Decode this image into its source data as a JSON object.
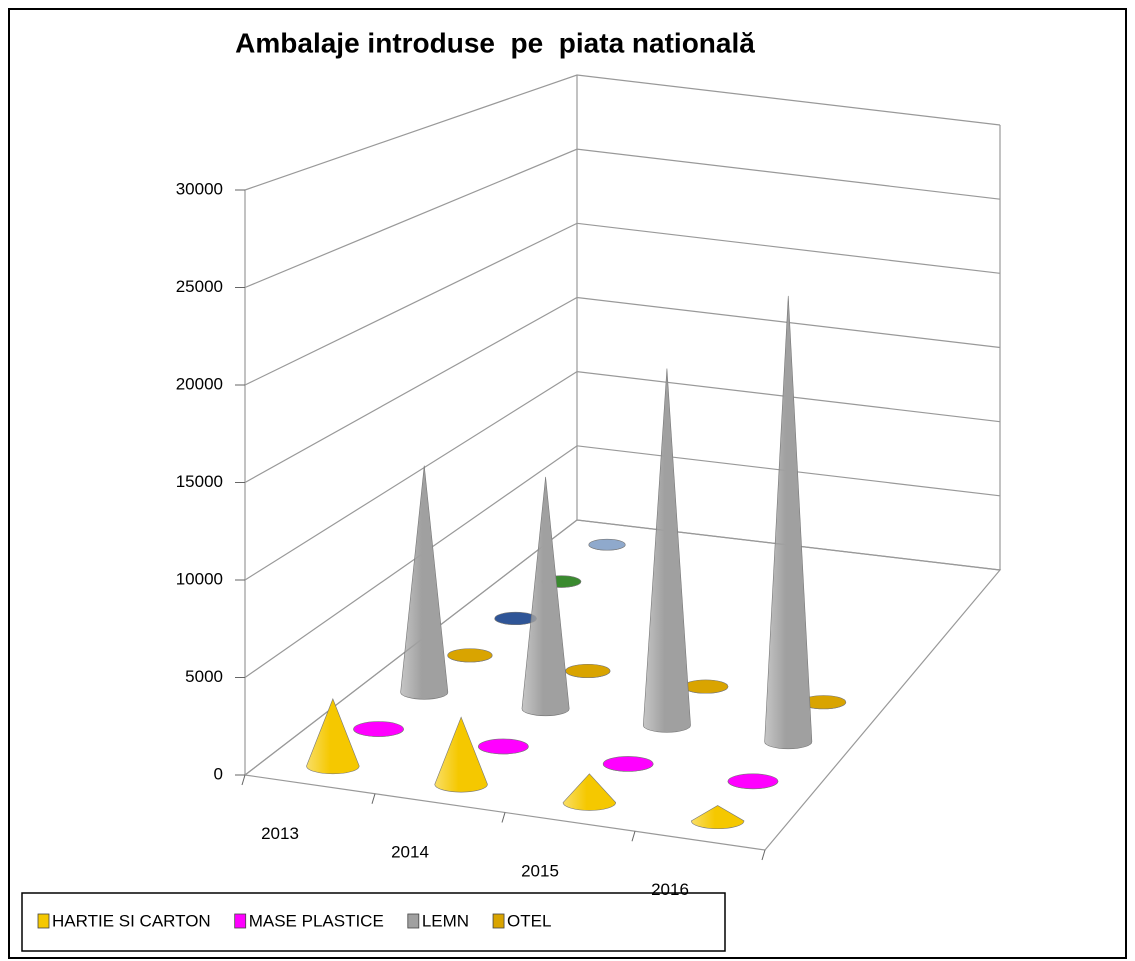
{
  "chart_data": {
    "type": "cone3d",
    "title": "Ambalaje introduse  pe  piata natională",
    "categories": [
      "2013",
      "2014",
      "2015",
      "2016"
    ],
    "series": [
      {
        "name": "HARTIE SI CARTON",
        "color": "#f5c800",
        "values": [
          3500,
          3500,
          1500,
          800
        ]
      },
      {
        "name": "MASE PLASTICE",
        "color": "#ff00ff",
        "values": [
          0,
          0,
          0,
          0
        ]
      },
      {
        "name": "LEMN",
        "color": "#a0a0a0",
        "values": [
          12700,
          13000,
          20000,
          25000
        ]
      },
      {
        "name": "OTEL",
        "color": "#d9a400",
        "values": [
          0,
          0,
          0,
          0
        ]
      },
      {
        "color": "#2f5597",
        "values": [
          0,
          null,
          null,
          null
        ]
      },
      {
        "color": "#3a8a2f",
        "values": [
          0,
          null,
          null,
          null
        ]
      },
      {
        "color": "#8fa9cc",
        "values": [
          0,
          null,
          null,
          null
        ]
      }
    ],
    "ylim": [
      0,
      30000
    ],
    "yticks": [
      0,
      5000,
      10000,
      15000,
      20000,
      25000,
      30000
    ],
    "grid": true
  }
}
